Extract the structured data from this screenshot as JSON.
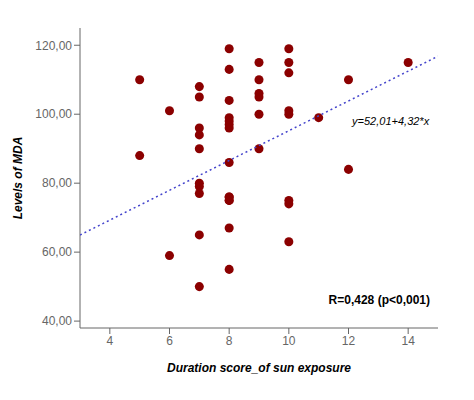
{
  "chart_data": {
    "type": "scatter",
    "xlabel": "Duration score_of sun exposure",
    "ylabel": "Levels of MDA",
    "xlim": [
      3,
      15
    ],
    "ylim": [
      38,
      125
    ],
    "xticks": [
      4,
      6,
      8,
      10,
      12,
      14
    ],
    "yticks": [
      {
        "value": 40,
        "label": "40,00"
      },
      {
        "value": 60,
        "label": "60,00"
      },
      {
        "value": 80,
        "label": "80,00"
      },
      {
        "value": 100,
        "label": "100,00"
      },
      {
        "value": 120,
        "label": "120,00"
      }
    ],
    "grid": false,
    "x": [
      5,
      5,
      6,
      6,
      7,
      7,
      7,
      7,
      7,
      7,
      7,
      7,
      7,
      7,
      8,
      8,
      8,
      8,
      8,
      8,
      8,
      8,
      8,
      8,
      8,
      8,
      8,
      8,
      9,
      9,
      9,
      9,
      9,
      9,
      10,
      10,
      10,
      10,
      10,
      10,
      10,
      10,
      11,
      12,
      12,
      14
    ],
    "series": [
      {
        "type": "scatter",
        "color": "#8B0000",
        "values": [
          110,
          88,
          101,
          59,
          108,
          105,
          96,
          94,
          90,
          80,
          79,
          77,
          65,
          50,
          119,
          113,
          104,
          99,
          98,
          97,
          96,
          86,
          76,
          76,
          75,
          75,
          67,
          55,
          115,
          110,
          106,
          105,
          100,
          90,
          119,
          115,
          112,
          101,
          100,
          75,
          74,
          63,
          99,
          110,
          84,
          115
        ]
      },
      {
        "type": "line",
        "color": "#4444CC",
        "line_style": "dotted",
        "x": [
          3,
          15
        ],
        "values": [
          64.97,
          116.81
        ]
      }
    ],
    "annotations": [
      "y=52,01+4,32*x",
      "R=0,428 (p<0,001)"
    ]
  }
}
